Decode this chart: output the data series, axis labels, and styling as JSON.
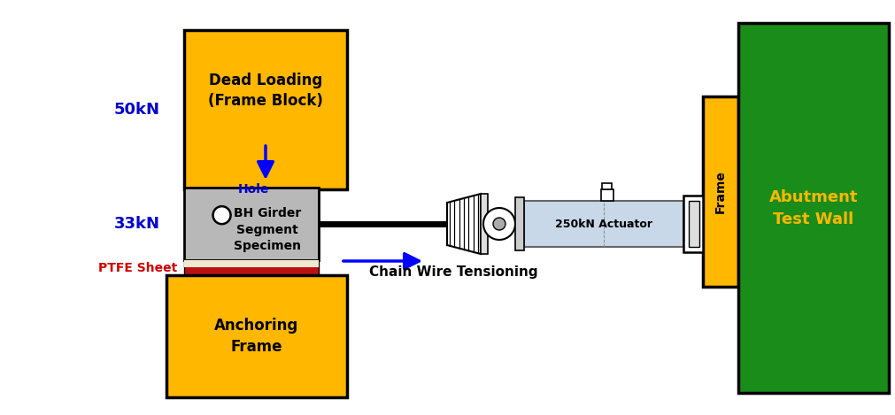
{
  "bg_color": "#ffffff",
  "gold_color": "#FFB700",
  "green_color": "#1a8c1a",
  "gray_color": "#B8B8B8",
  "blue_color": "#0000FF",
  "red_color": "#CC0000",
  "cyan_actuator": "#c8d8e8",
  "text_blue": "#0000CC",
  "dead_loading_text": "Dead Loading\n(Frame Block)",
  "anchoring_text": "Anchoring\nFrame",
  "bh_girder_text": "BH Girder\nSegment\nSpecimen",
  "hole_text": "Hole",
  "ptfe_text": "PTFE Sheet",
  "50kN_text": "50kN",
  "33kN_text": "33kN",
  "actuator_text": "250kN Actuator",
  "chain_wire_text": "Chain Wire Tensioning",
  "frame_text": "Frame",
  "abutment_text": "Abutment\nTest Wall",
  "fig_w": 10.11,
  "fig_h": 4.69
}
